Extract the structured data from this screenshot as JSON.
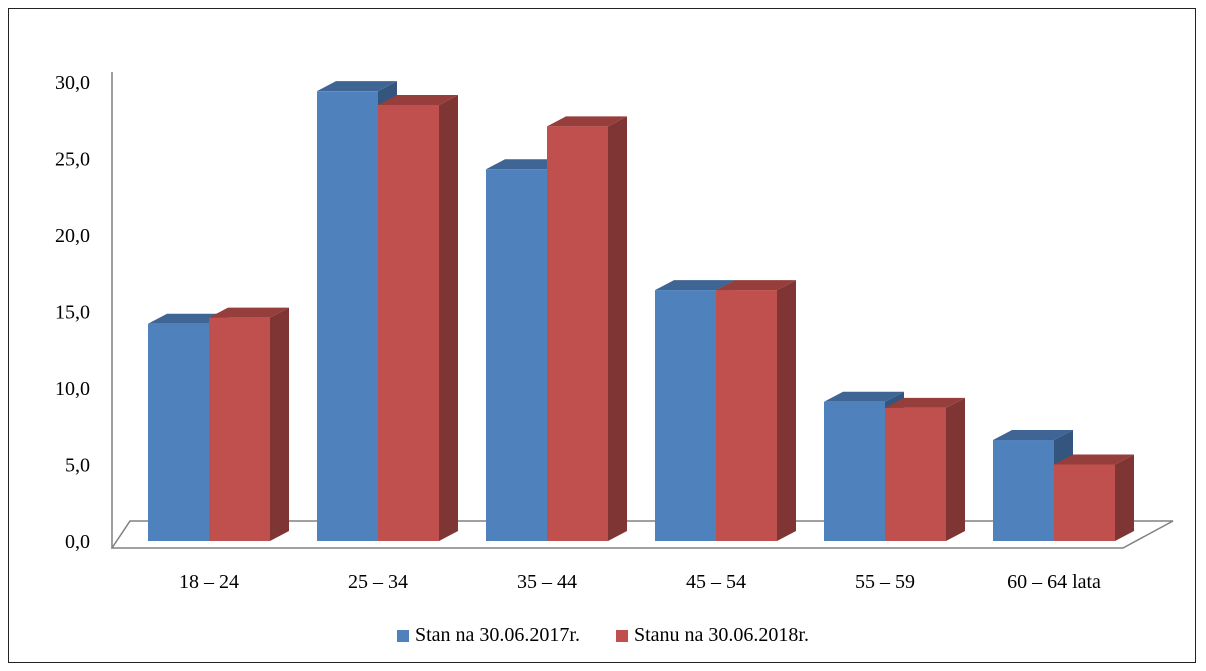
{
  "chart_data": {
    "type": "bar",
    "title": "",
    "xlabel": "",
    "ylabel": "",
    "categories": [
      "18 – 24",
      "25 – 34",
      "35 – 44",
      "45 – 54",
      "55 – 59",
      "60 – 64 lata"
    ],
    "series": [
      {
        "name": "Stan na 30.06.2017r.",
        "color": "#4F81BD",
        "values": [
          14.2,
          29.4,
          24.3,
          16.4,
          9.1,
          6.6
        ]
      },
      {
        "name": "Stanu na 30.06.2018r.",
        "color": "#C0504D",
        "values": [
          14.6,
          28.5,
          27.1,
          16.4,
          8.7,
          5.0
        ]
      }
    ],
    "ylim": [
      0,
      30
    ],
    "yticks": [
      "0,0",
      "5,0",
      "10,0",
      "15,0",
      "20,0",
      "25,0",
      "30,0"
    ],
    "yticks_values": [
      0,
      5,
      10,
      15,
      20,
      25,
      30
    ],
    "grid": false,
    "legend": "bottom",
    "style": "3d-column"
  }
}
